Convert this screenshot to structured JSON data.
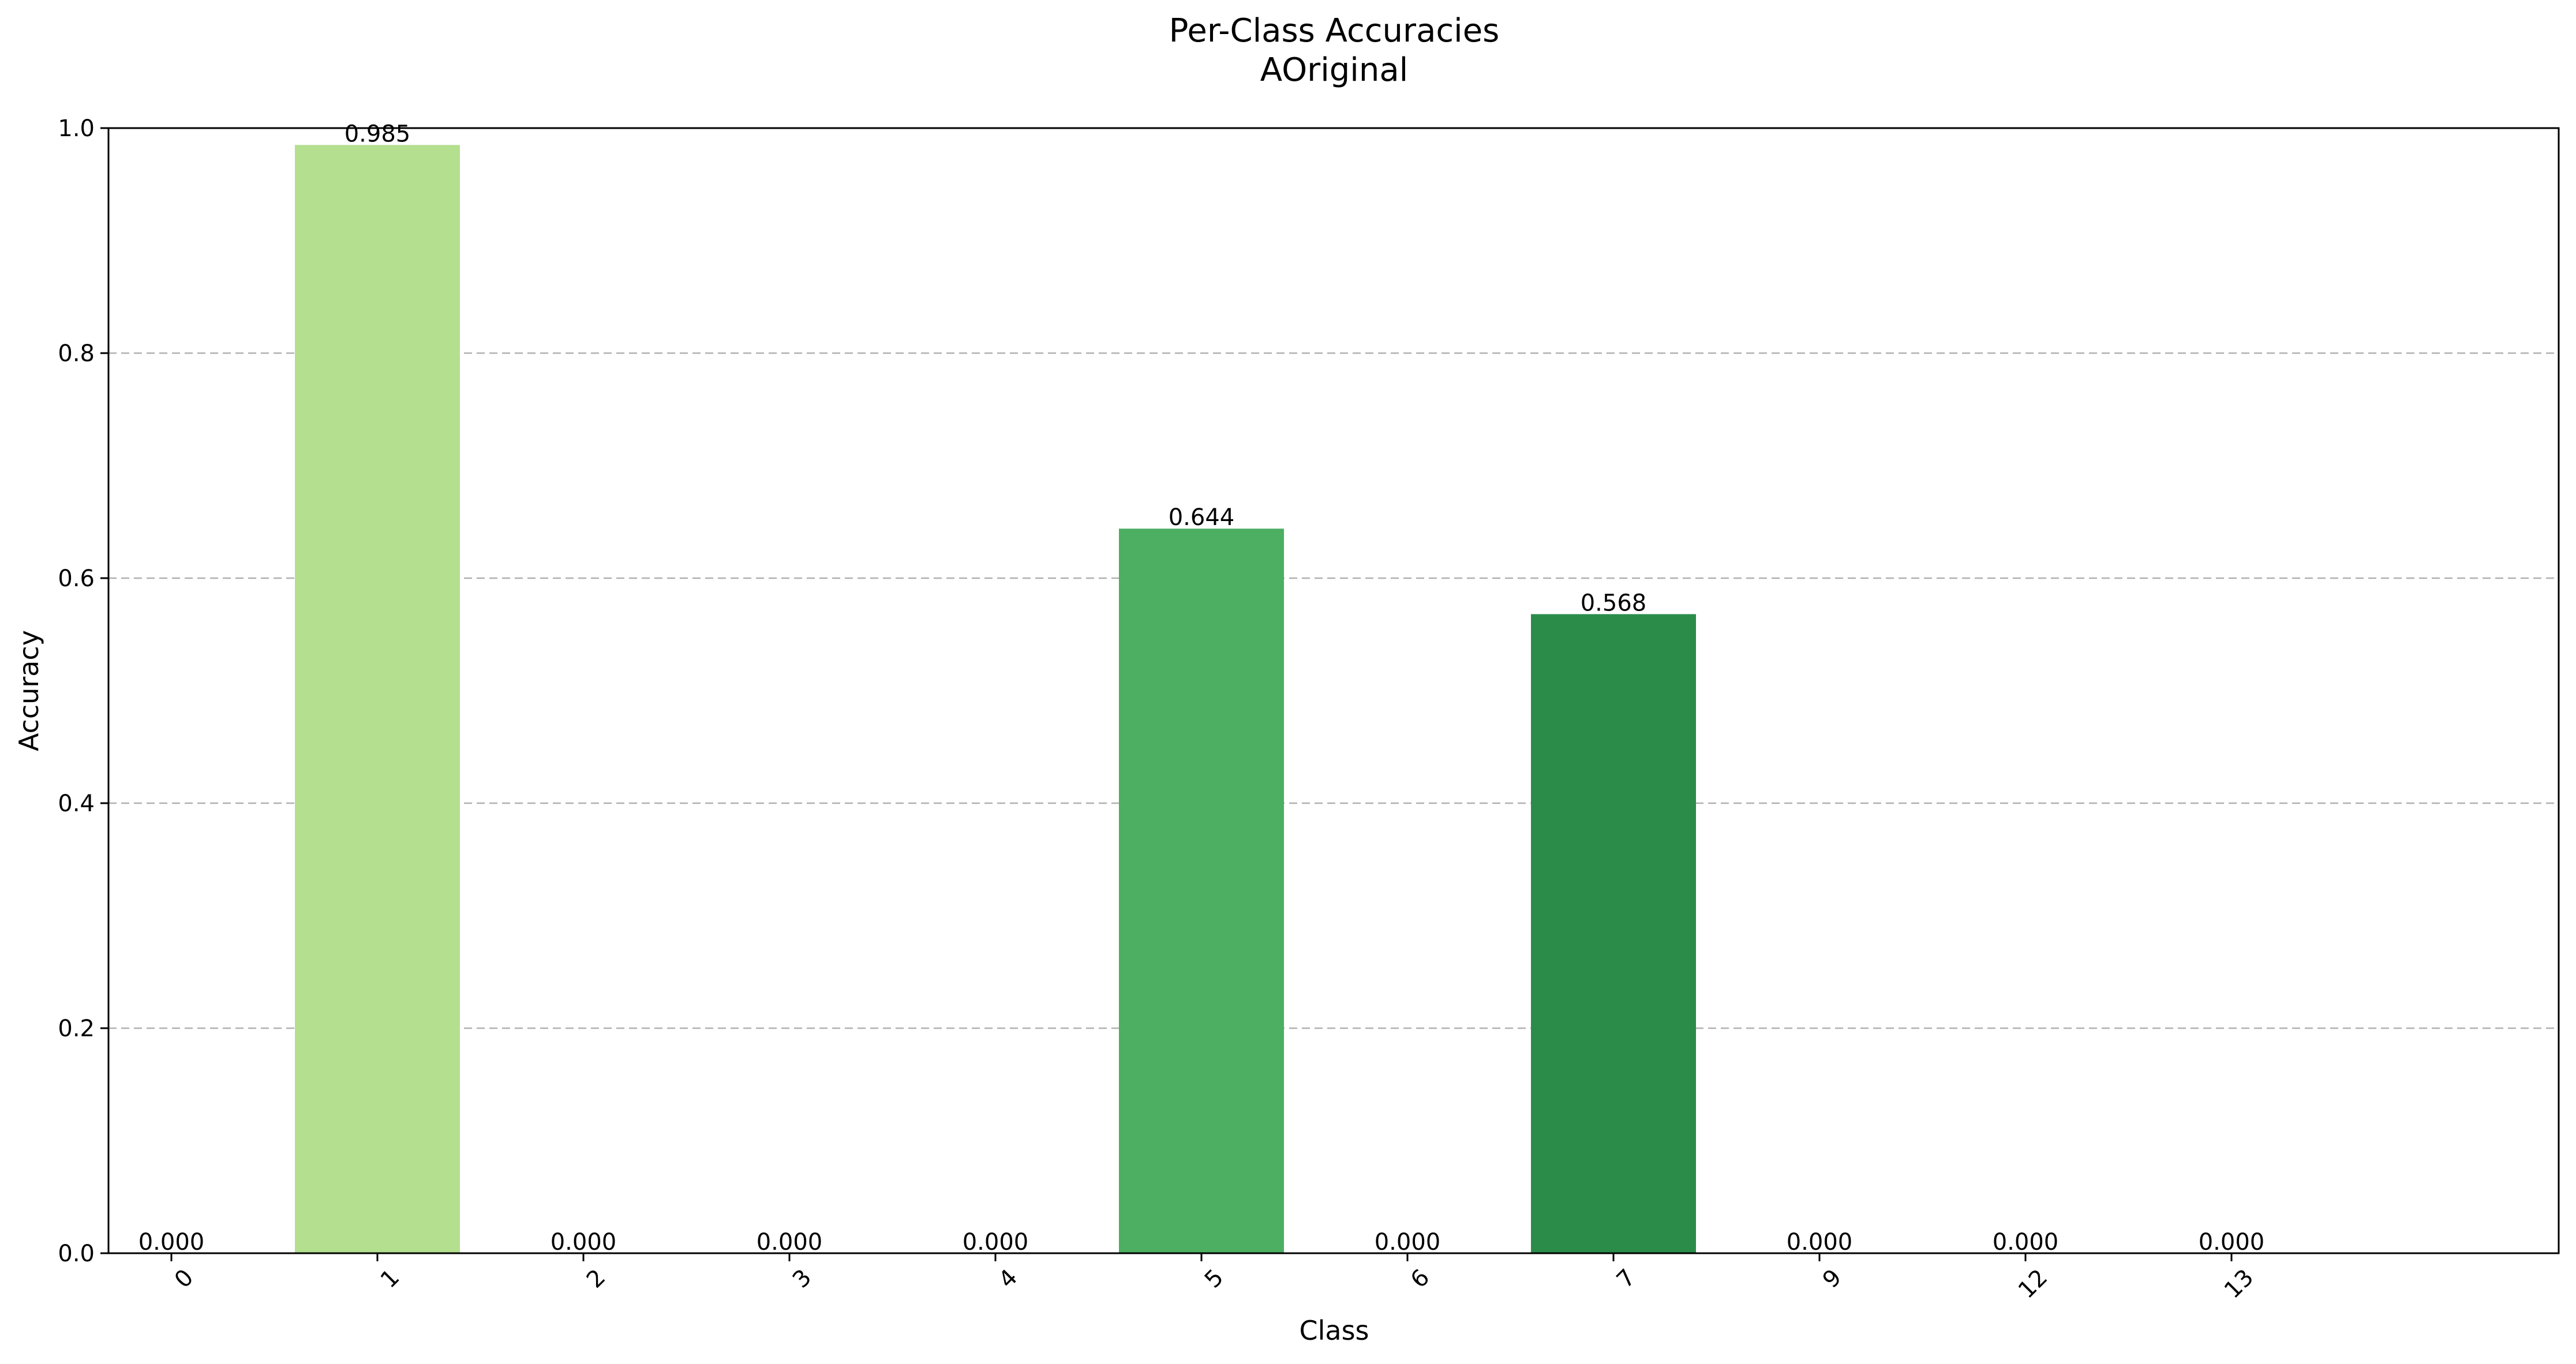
{
  "chart_data": {
    "type": "bar",
    "title": "Per-Class Accuracies",
    "subtitle": "AOriginal",
    "xlabel": "Class",
    "ylabel": "Accuracy",
    "ylim": [
      0,
      1.0
    ],
    "yticks": [
      0.0,
      0.2,
      0.4,
      0.6,
      0.8,
      1.0
    ],
    "ytick_labels": [
      "0.0",
      "0.2",
      "0.4",
      "0.6",
      "0.8",
      "1.0"
    ],
    "grid": "y-dashed",
    "categories": [
      "0",
      "1",
      "2",
      "3",
      "4",
      "5",
      "6",
      "7",
      "9",
      "12",
      "13"
    ],
    "values": [
      0.0,
      0.985,
      0.0,
      0.0,
      0.0,
      0.644,
      0.0,
      0.568,
      0.0,
      0.0,
      0.0
    ],
    "value_labels": [
      "0.000",
      "0.985",
      "0.000",
      "0.000",
      "0.000",
      "0.644",
      "0.000",
      "0.568",
      "0.000",
      "0.000",
      "0.000"
    ],
    "colors": [
      "#f7fcb9",
      "#b3df8f",
      "#addd8e",
      "#93d389",
      "#78c679",
      "#4caf62",
      "#41ab5d",
      "#2b8c4a",
      "#238443",
      "#006837",
      "#004529"
    ]
  }
}
